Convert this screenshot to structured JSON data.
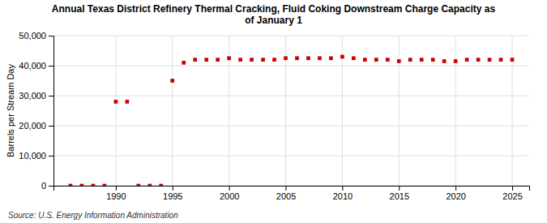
{
  "chart_data": {
    "type": "scatter",
    "title": "Annual Texas District Refinery Thermal Cracking, Fluid Coking Downstream Charge Capacity as\nof January 1",
    "y_label": "Barrels per Stream Day",
    "annotations": [
      "Source: U.S. Energy Information Administration"
    ],
    "x": [
      1986,
      1987,
      1988,
      1989,
      1990,
      1991,
      1992,
      1993,
      1994,
      1995,
      1996,
      1997,
      1998,
      1999,
      2000,
      2001,
      2002,
      2003,
      2004,
      2005,
      2006,
      2007,
      2008,
      2009,
      2010,
      2011,
      2012,
      2013,
      2014,
      2015,
      2016,
      2017,
      2018,
      2019,
      2020,
      2021,
      2022,
      2023,
      2024,
      2025
    ],
    "values": [
      0,
      0,
      0,
      0,
      28000,
      28000,
      0,
      0,
      0,
      35000,
      41000,
      42000,
      42000,
      42000,
      42500,
      42000,
      42000,
      42000,
      42000,
      42500,
      42500,
      42500,
      42500,
      42500,
      43000,
      42500,
      42000,
      42000,
      42000,
      41500,
      42000,
      42000,
      42000,
      41500,
      41500,
      42000,
      42000,
      42000,
      42000,
      42000
    ],
    "color": "#cc0000",
    "marker": "square",
    "xlim": [
      1984.5,
      2026.5
    ],
    "ylim": [
      0,
      50000
    ],
    "xticks": [
      1990,
      1995,
      2000,
      2005,
      2010,
      2015,
      2020,
      2025
    ],
    "yticks": [
      0,
      {
        "value": 10000,
        "label": "10,000"
      },
      {
        "value": 20000,
        "label": "20,000"
      },
      {
        "value": 30000,
        "label": "30,000"
      },
      {
        "value": 40000,
        "label": "40,000"
      },
      {
        "value": 50000,
        "label": "50,000"
      }
    ],
    "grid": true
  }
}
